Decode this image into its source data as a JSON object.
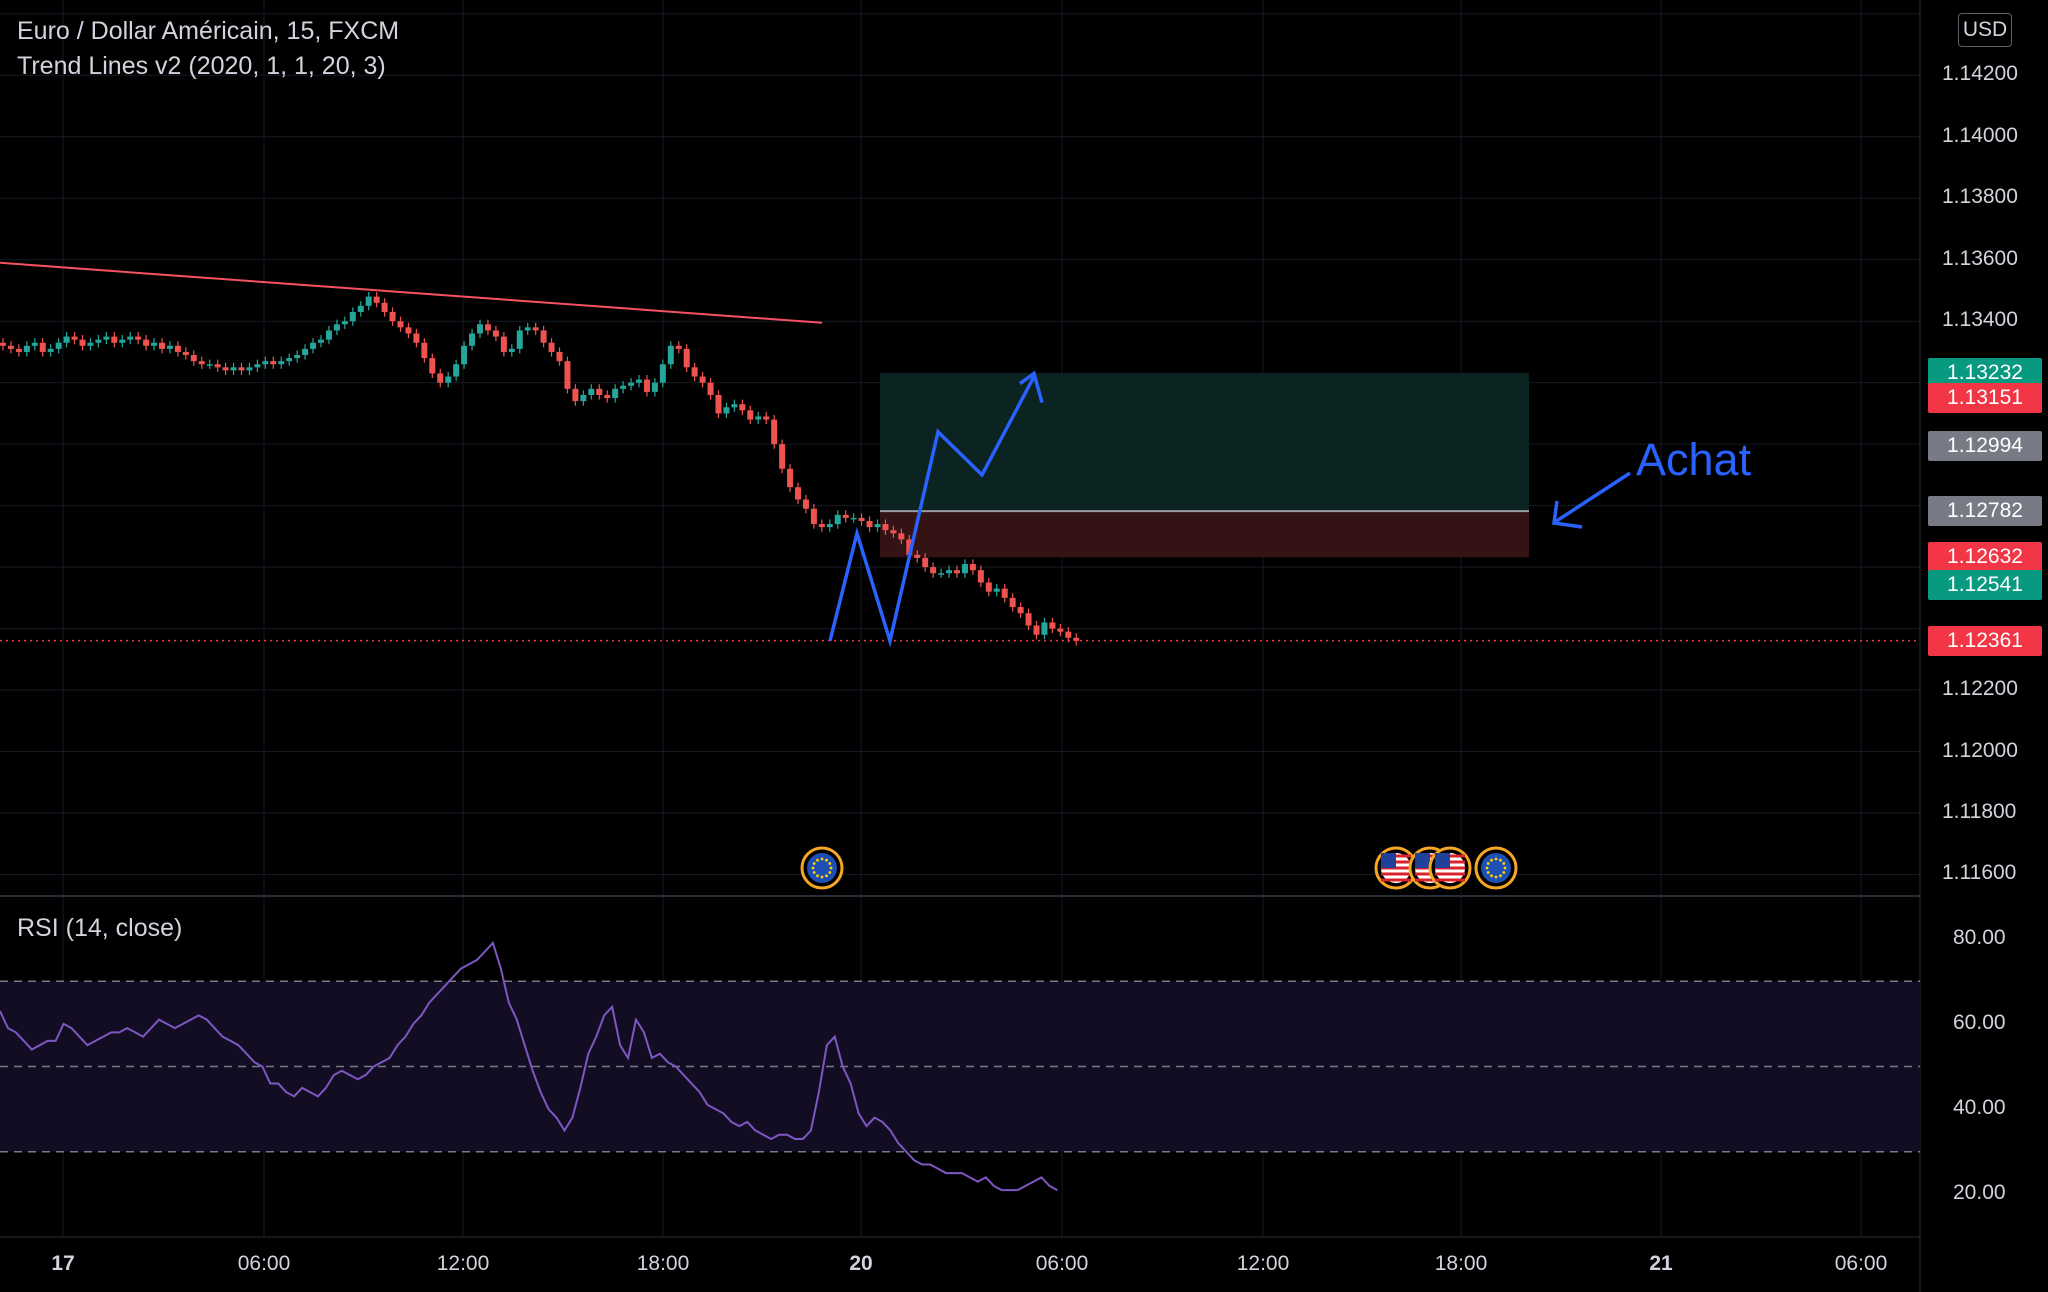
{
  "chart_data": [
    {
      "type": "candlestick",
      "title": "Euro / Dollar Américain, 15, FXCM",
      "indicator": "Trend Lines v2 (2020, 1, 1, 20, 3)",
      "currency": "USD",
      "x_ticks": [
        "17",
        "06:00",
        "12:00",
        "18:00",
        "20",
        "06:00",
        "12:00",
        "18:00",
        "21",
        "06:00"
      ],
      "y_ticks": [
        "1.14200",
        "1.14000",
        "1.13800",
        "1.13600",
        "1.13400",
        "1.12200",
        "1.12000",
        "1.11800",
        "1.11600"
      ],
      "ylim": [
        1.1153,
        1.14445
      ],
      "close": [
        1.1332,
        1.1331,
        1.133,
        1.1332,
        1.1333,
        1.133,
        1.1331,
        1.1333,
        1.1335,
        1.1334,
        1.1332,
        1.1333,
        1.1334,
        1.1335,
        1.1333,
        1.1334,
        1.1335,
        1.1334,
        1.1332,
        1.1333,
        1.1331,
        1.1332,
        1.133,
        1.1329,
        1.1327,
        1.1326,
        1.1326,
        1.1325,
        1.1324,
        1.1325,
        1.1324,
        1.1325,
        1.1326,
        1.1327,
        1.1326,
        1.1327,
        1.1328,
        1.1329,
        1.1331,
        1.1333,
        1.1334,
        1.1337,
        1.1339,
        1.134,
        1.1343,
        1.1345,
        1.1348,
        1.1346,
        1.1343,
        1.134,
        1.1338,
        1.1336,
        1.1333,
        1.1328,
        1.1323,
        1.132,
        1.1322,
        1.1326,
        1.1332,
        1.1336,
        1.1339,
        1.1337,
        1.1335,
        1.133,
        1.1331,
        1.1337,
        1.1338,
        1.1337,
        1.1333,
        1.133,
        1.1327,
        1.1318,
        1.1314,
        1.1316,
        1.1318,
        1.1316,
        1.1315,
        1.1318,
        1.1319,
        1.132,
        1.1321,
        1.1317,
        1.132,
        1.1326,
        1.1332,
        1.1331,
        1.1325,
        1.1322,
        1.132,
        1.1316,
        1.131,
        1.1312,
        1.1313,
        1.1311,
        1.1308,
        1.1309,
        1.1308,
        1.13,
        1.1292,
        1.1286,
        1.1282,
        1.1279,
        1.1274,
        1.1273,
        1.1274,
        1.1277,
        1.1276,
        1.1276,
        1.1275,
        1.1273,
        1.1274,
        1.1272,
        1.1271,
        1.1269,
        1.1264,
        1.1263,
        1.126,
        1.1258,
        1.1258,
        1.1259,
        1.1258,
        1.1261,
        1.1259,
        1.1255,
        1.1252,
        1.1253,
        1.125,
        1.1247,
        1.1245,
        1.1241,
        1.1238,
        1.1242,
        1.124,
        1.1239,
        1.1237,
        1.1236
      ],
      "trendline": {
        "start": 1.1359,
        "end": 1.13395
      },
      "current_price_line": 1.12361,
      "price_labels": [
        {
          "text": "1.13232",
          "value": 1.13232,
          "color": "#089981"
        },
        {
          "text": "1.13151",
          "value": 1.13151,
          "color": "#f23645"
        },
        {
          "text": "1.12994",
          "value": 1.12994,
          "color": "#787b86"
        },
        {
          "text": "1.12782",
          "value": 1.12782,
          "color": "#787b86"
        },
        {
          "text": "1.12632",
          "value": 1.12632,
          "color": "#f23645"
        },
        {
          "text": "1.12541",
          "value": 1.12541,
          "color": "#089981"
        },
        {
          "text": "1.12361",
          "value": 1.12361,
          "color": "#f23645"
        }
      ],
      "position_tool": {
        "target": 1.13232,
        "entry": 1.12782,
        "stop": 1.12632
      },
      "annotation": {
        "text": "Achat",
        "color": "#2962ff"
      },
      "projection_path": [
        1.1236,
        1.1271,
        1.1236,
        1.1304,
        1.129,
        1.1322
      ],
      "event_markers": [
        "eu-flag-icon",
        "us-flag-icon",
        "us-flag-icon",
        "eu-flag-icon"
      ]
    },
    {
      "type": "line",
      "title": "RSI (14, close)",
      "y_ticks": [
        "80.00",
        "60.00",
        "40.00",
        "20.00"
      ],
      "ylim": [
        10,
        90
      ],
      "bands": [
        70,
        50,
        30
      ],
      "values": [
        63,
        59,
        58,
        56,
        54,
        55,
        56,
        56,
        60,
        59,
        57,
        55,
        56,
        57,
        58,
        58,
        59,
        58,
        57,
        59,
        61,
        60,
        59,
        60,
        61,
        62,
        61,
        59,
        57,
        56,
        55,
        53,
        51,
        50,
        46,
        46,
        44,
        43,
        45,
        44,
        43,
        45,
        48,
        49,
        48,
        47,
        48,
        50,
        51,
        52,
        55,
        57,
        60,
        62,
        65,
        67,
        69,
        71,
        73,
        74,
        75,
        77,
        79,
        73,
        65,
        61,
        55,
        49,
        44,
        40,
        38,
        35,
        38,
        45,
        53,
        57,
        62,
        64,
        55,
        52,
        61,
        58,
        52,
        53,
        51,
        50,
        48,
        46,
        44,
        41,
        40,
        39,
        37,
        36,
        37,
        35,
        34,
        33,
        34,
        34,
        33,
        33,
        35,
        44,
        55,
        57,
        50,
        46,
        39,
        36,
        38,
        37,
        35,
        32,
        30,
        28,
        27,
        27,
        26,
        25,
        25,
        25,
        24,
        23,
        24,
        22,
        21,
        21,
        21,
        22,
        23,
        24,
        22,
        21
      ]
    }
  ]
}
